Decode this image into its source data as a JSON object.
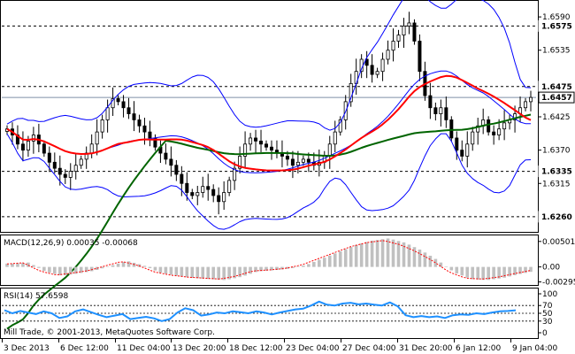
{
  "chart_data": [
    {
      "type": "candlestick",
      "panel": "price",
      "x_ticks": [
        "3 Dec 2013",
        "6 Dec 12:00",
        "11 Dec 04:00",
        "13 Dec 20:00",
        "18 Dec 12:00",
        "23 Dec 04:00",
        "27 Dec 04:00",
        "31 Dec 20:00",
        "6 Jan 12:00",
        "9 Jan 04:00"
      ],
      "y_ticks": [
        "1.6590",
        "1.6535",
        "1.6425",
        "1.6370",
        "1.6315",
        "1.6260"
      ],
      "ylim": [
        1.6235,
        1.6615
      ],
      "levels": [
        {
          "value": 1.6575,
          "label": "1.6575",
          "style": "dashed"
        },
        {
          "value": 1.6475,
          "label": "1.6475",
          "style": "dashed"
        },
        {
          "value": 1.6335,
          "label": "1.6335",
          "style": "dashed"
        },
        {
          "value": 1.626,
          "label": "1.6260",
          "style": "dashed"
        },
        {
          "value": 1.6457,
          "label": "1.6457",
          "style": "current"
        }
      ],
      "close": [
        1.6405,
        1.6395,
        1.638,
        1.637,
        1.6385,
        1.6395,
        1.638,
        1.6365,
        1.635,
        1.634,
        1.633,
        1.6325,
        1.6335,
        1.6345,
        1.6355,
        1.6365,
        1.638,
        1.64,
        1.642,
        1.644,
        1.6455,
        1.645,
        1.644,
        1.643,
        1.642,
        1.641,
        1.64,
        1.639,
        1.6375,
        1.6365,
        1.6355,
        1.6345,
        1.633,
        1.6315,
        1.63,
        1.6295,
        1.63,
        1.631,
        1.6305,
        1.6295,
        1.6285,
        1.63,
        1.632,
        1.634,
        1.636,
        1.638,
        1.639,
        1.6385,
        1.638,
        1.6375,
        1.637,
        1.6365,
        1.636,
        1.6355,
        1.6345,
        1.635,
        1.6355,
        1.635,
        1.6345,
        1.635,
        1.636,
        1.638,
        1.64,
        1.642,
        1.645,
        1.648,
        1.65,
        1.652,
        1.651,
        1.6495,
        1.65,
        1.652,
        1.6535,
        1.655,
        1.656,
        1.6575,
        1.658,
        1.655,
        1.65,
        1.646,
        1.644,
        1.643,
        1.644,
        1.642,
        1.639,
        1.637,
        1.636,
        1.638,
        1.64,
        1.641,
        1.642,
        1.64,
        1.6395,
        1.6405,
        1.6415,
        1.642,
        1.643,
        1.644,
        1.645,
        1.6457
      ],
      "series": [
        {
          "name": "",
          "color": "#0000ff",
          "role": "bollinger-upper"
        },
        {
          "name": "",
          "color": "#0000ff",
          "role": "bollinger-middle"
        },
        {
          "name": "",
          "color": "#0000ff",
          "role": "bollinger-lower"
        },
        {
          "name": "",
          "color": "#ff0000",
          "role": "moving-average-fast"
        },
        {
          "name": "",
          "color": "#006400",
          "role": "moving-average-slow"
        }
      ]
    },
    {
      "type": "bar",
      "panel": "macd",
      "title": "MACD(12,26,9) 0.00035 -0.00068",
      "y_ticks": [
        "0.00501",
        "0.00",
        "-0.00295"
      ],
      "ylim": [
        -0.0032,
        0.0055
      ],
      "signal_color": "#ff0000",
      "bar_color": "#c0c0c0",
      "signal_points": [
        0.0006,
        0.0008,
        -0.0008,
        -0.0016,
        -0.0012,
        -0.0007,
        0.0002,
        0.0011,
        0.0003,
        -0.001,
        -0.0016,
        -0.002,
        -0.0022,
        -0.0024,
        -0.0018,
        -0.0008,
        -0.0006,
        -0.0003,
        0.0004,
        0.0016,
        0.0028,
        0.004,
        0.0048,
        0.0052,
        0.0044,
        0.003,
        0.0012,
        -0.001,
        -0.0022,
        -0.0024,
        -0.002,
        -0.0013,
        -0.0007
      ]
    },
    {
      "type": "line",
      "panel": "rsi",
      "title": "RSI(14) 57.6598",
      "y_ticks": [
        "100",
        "70",
        "50",
        "30",
        "0"
      ],
      "ylim": [
        0,
        100
      ],
      "color": "#1e90ff",
      "levels": [
        70,
        50,
        30
      ],
      "values": [
        58,
        50,
        56,
        52,
        48,
        55,
        50,
        38,
        42,
        55,
        60,
        53,
        46,
        40,
        44,
        48,
        35,
        38,
        41,
        37,
        30,
        35,
        52,
        63,
        58,
        44,
        47,
        52,
        50,
        55,
        53,
        50,
        55,
        52,
        47,
        52,
        56,
        60,
        62,
        70,
        80,
        72,
        70,
        75,
        77,
        73,
        75,
        72,
        70,
        78,
        68,
        45,
        40,
        43,
        40,
        42,
        38,
        45,
        47,
        46,
        50,
        48,
        52,
        55,
        56,
        57.6598
      ]
    }
  ],
  "footer": {
    "copyright": "Mill Trade, © 2001-2013, MetaQuotes Software Corp."
  }
}
